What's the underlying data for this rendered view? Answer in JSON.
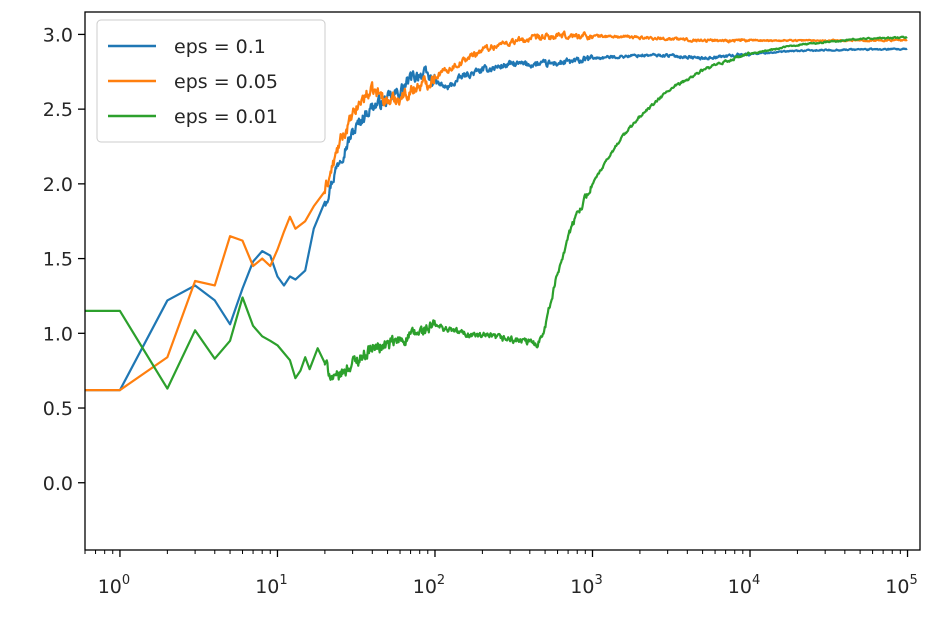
{
  "chart_data": {
    "type": "line",
    "title": "",
    "xlabel": "",
    "ylabel": "",
    "xscale": "log",
    "xlim": [
      0.6,
      120000
    ],
    "ylim": [
      -0.45,
      3.15
    ],
    "grid": false,
    "legend": {
      "placement": "top-left"
    },
    "x_ticks": [
      {
        "value": 1,
        "base": "10",
        "exp": "0"
      },
      {
        "value": 10,
        "base": "10",
        "exp": "1"
      },
      {
        "value": 100,
        "base": "10",
        "exp": "2"
      },
      {
        "value": 1000,
        "base": "10",
        "exp": "3"
      },
      {
        "value": 10000,
        "base": "10",
        "exp": "4"
      },
      {
        "value": 100000,
        "base": "10",
        "exp": "5"
      }
    ],
    "y_ticks": [
      {
        "value": 0.0,
        "label": "0.0"
      },
      {
        "value": 0.5,
        "label": "0.5"
      },
      {
        "value": 1.0,
        "label": "1.0"
      },
      {
        "value": 1.5,
        "label": "1.5"
      },
      {
        "value": 2.0,
        "label": "2.0"
      },
      {
        "value": 2.5,
        "label": "2.5"
      },
      {
        "value": 3.0,
        "label": "3.0"
      }
    ],
    "series": [
      {
        "name": "eps = 0.1",
        "color": "#1f77b4",
        "points": [
          [
            0.6,
            0.62
          ],
          [
            1,
            0.62
          ],
          [
            2,
            1.22
          ],
          [
            3,
            1.32
          ],
          [
            4,
            1.22
          ],
          [
            5,
            1.06
          ],
          [
            6,
            1.3
          ],
          [
            7,
            1.48
          ],
          [
            8,
            1.55
          ],
          [
            9,
            1.52
          ],
          [
            10,
            1.38
          ],
          [
            11,
            1.32
          ],
          [
            12,
            1.38
          ],
          [
            13,
            1.36
          ],
          [
            15,
            1.42
          ],
          [
            17,
            1.7
          ],
          [
            20,
            1.88
          ],
          [
            25,
            2.18
          ],
          [
            30,
            2.34
          ],
          [
            35,
            2.45
          ],
          [
            40,
            2.52
          ],
          [
            50,
            2.56
          ],
          [
            60,
            2.62
          ],
          [
            70,
            2.7
          ],
          [
            80,
            2.74
          ],
          [
            90,
            2.72
          ],
          [
            100,
            2.68
          ],
          [
            120,
            2.64
          ],
          [
            150,
            2.72
          ],
          [
            200,
            2.76
          ],
          [
            300,
            2.8
          ],
          [
            500,
            2.8
          ],
          [
            800,
            2.82
          ],
          [
            1000,
            2.84
          ],
          [
            2000,
            2.86
          ],
          [
            3000,
            2.86
          ],
          [
            5000,
            2.84
          ],
          [
            10000,
            2.87
          ],
          [
            20000,
            2.89
          ],
          [
            50000,
            2.9
          ],
          [
            100000,
            2.9
          ]
        ]
      },
      {
        "name": "eps = 0.05",
        "color": "#ff7f0e",
        "points": [
          [
            0.6,
            0.62
          ],
          [
            1,
            0.62
          ],
          [
            2,
            0.84
          ],
          [
            3,
            1.35
          ],
          [
            4,
            1.32
          ],
          [
            5,
            1.65
          ],
          [
            6,
            1.62
          ],
          [
            7,
            1.45
          ],
          [
            8,
            1.5
          ],
          [
            9,
            1.45
          ],
          [
            10,
            1.56
          ],
          [
            11,
            1.68
          ],
          [
            12,
            1.78
          ],
          [
            13,
            1.7
          ],
          [
            15,
            1.75
          ],
          [
            17,
            1.85
          ],
          [
            20,
            1.95
          ],
          [
            25,
            2.28
          ],
          [
            30,
            2.45
          ],
          [
            35,
            2.58
          ],
          [
            40,
            2.62
          ],
          [
            45,
            2.6
          ],
          [
            50,
            2.55
          ],
          [
            60,
            2.58
          ],
          [
            70,
            2.62
          ],
          [
            80,
            2.66
          ],
          [
            90,
            2.68
          ],
          [
            100,
            2.72
          ],
          [
            150,
            2.82
          ],
          [
            200,
            2.9
          ],
          [
            300,
            2.95
          ],
          [
            500,
            2.98
          ],
          [
            700,
            2.99
          ],
          [
            1000,
            2.99
          ],
          [
            2000,
            2.98
          ],
          [
            5000,
            2.96
          ],
          [
            10000,
            2.96
          ],
          [
            20000,
            2.96
          ],
          [
            50000,
            2.96
          ],
          [
            100000,
            2.96
          ]
        ]
      },
      {
        "name": "eps = 0.01",
        "color": "#2ca02c",
        "points": [
          [
            0.6,
            1.15
          ],
          [
            1,
            1.15
          ],
          [
            2,
            0.63
          ],
          [
            3,
            1.02
          ],
          [
            4,
            0.83
          ],
          [
            5,
            0.95
          ],
          [
            6,
            1.24
          ],
          [
            7,
            1.05
          ],
          [
            8,
            0.98
          ],
          [
            9,
            0.95
          ],
          [
            10,
            0.92
          ],
          [
            12,
            0.82
          ],
          [
            13,
            0.7
          ],
          [
            14,
            0.75
          ],
          [
            15,
            0.84
          ],
          [
            16,
            0.76
          ],
          [
            18,
            0.9
          ],
          [
            20,
            0.8
          ],
          [
            23,
            0.68
          ],
          [
            25,
            0.72
          ],
          [
            30,
            0.8
          ],
          [
            40,
            0.9
          ],
          [
            50,
            0.92
          ],
          [
            70,
            0.98
          ],
          [
            100,
            1.05
          ],
          [
            150,
            1.0
          ],
          [
            200,
            0.98
          ],
          [
            300,
            0.96
          ],
          [
            450,
            0.93
          ],
          [
            500,
            1.05
          ],
          [
            600,
            1.4
          ],
          [
            700,
            1.65
          ],
          [
            800,
            1.8
          ],
          [
            1000,
            2.0
          ],
          [
            1500,
            2.3
          ],
          [
            2000,
            2.45
          ],
          [
            3000,
            2.62
          ],
          [
            5000,
            2.76
          ],
          [
            8000,
            2.84
          ],
          [
            10000,
            2.87
          ],
          [
            20000,
            2.93
          ],
          [
            50000,
            2.97
          ],
          [
            100000,
            2.98
          ]
        ]
      }
    ]
  }
}
